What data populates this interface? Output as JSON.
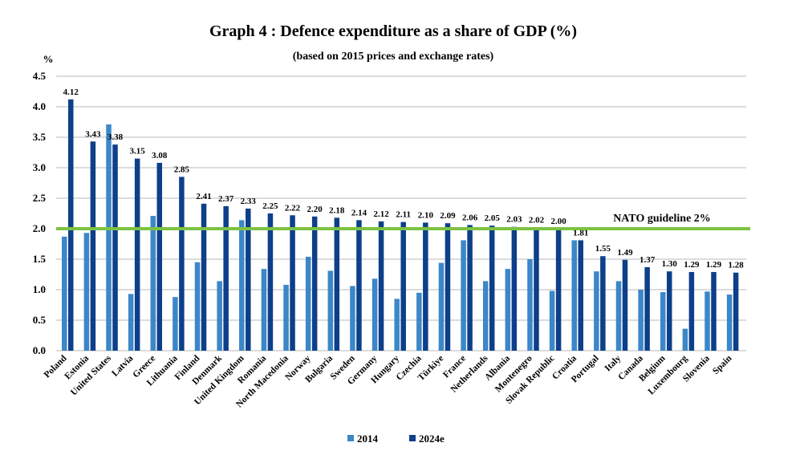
{
  "chart_data": {
    "type": "bar",
    "title": "Graph 4 : Defence expenditure as a share of GDP (%)",
    "subtitle": "(based on 2015 prices and exchange rates)",
    "ylabel": "%",
    "xlabel": "",
    "ylim": [
      0,
      4.5
    ],
    "yticks": [
      "0.0",
      "0.5",
      "1.0",
      "1.5",
      "2.0",
      "2.5",
      "3.0",
      "3.5",
      "4.0",
      "4.5"
    ],
    "grid": true,
    "legend_position": "bottom",
    "categories": [
      "Poland",
      "Estonia",
      "United States",
      "Latvia",
      "Greece",
      "Lithuania",
      "Finland",
      "Denmark",
      "United Kingdom",
      "Romania",
      "North Macedonia",
      "Norway",
      "Bulgaria",
      "Sweden",
      "Germany",
      "Hungary",
      "Czechia",
      "Türkiye",
      "France",
      "Netherlands",
      "Albania",
      "Montenegro",
      "Slovak Republic",
      "Croatia",
      "Portugal",
      "Italy",
      "Canada",
      "Belgium",
      "Luxembourg",
      "Slovenia",
      "Spain"
    ],
    "series": [
      {
        "name": "2014",
        "color": "#3b87c8",
        "values": [
          1.87,
          1.93,
          3.71,
          0.93,
          2.21,
          0.88,
          1.45,
          1.14,
          2.14,
          1.34,
          1.08,
          1.54,
          1.31,
          1.06,
          1.18,
          0.85,
          0.95,
          1.44,
          1.81,
          1.14,
          1.34,
          1.5,
          0.98,
          1.81,
          1.3,
          1.14,
          1.0,
          0.96,
          0.36,
          0.97,
          0.92
        ]
      },
      {
        "name": "2024e",
        "color": "#0d3f8a",
        "values": [
          4.12,
          3.43,
          3.38,
          3.15,
          3.08,
          2.85,
          2.41,
          2.37,
          2.33,
          2.25,
          2.22,
          2.2,
          2.18,
          2.14,
          2.12,
          2.11,
          2.1,
          2.09,
          2.06,
          2.05,
          2.03,
          2.02,
          2.0,
          1.81,
          1.55,
          1.49,
          1.37,
          1.3,
          1.29,
          1.29,
          1.28
        ],
        "labels": [
          "4.12",
          "3.43",
          "3.38",
          "3.15",
          "3.08",
          "2.85",
          "2.41",
          "2.37",
          "2.33",
          "2.25",
          "2.22",
          "2.20",
          "2.18",
          "2.14",
          "2.12",
          "2.11",
          "2.10",
          "2.09",
          "2.06",
          "2.05",
          "2.03",
          "2.02",
          "2.00",
          "1.81",
          "1.55",
          "1.49",
          "1.37",
          "1.30",
          "1.29",
          "1.29",
          "1.28"
        ]
      }
    ],
    "reference_line": {
      "value": 2.0,
      "label": "NATO guideline 2%",
      "color": "#7dc242"
    }
  }
}
